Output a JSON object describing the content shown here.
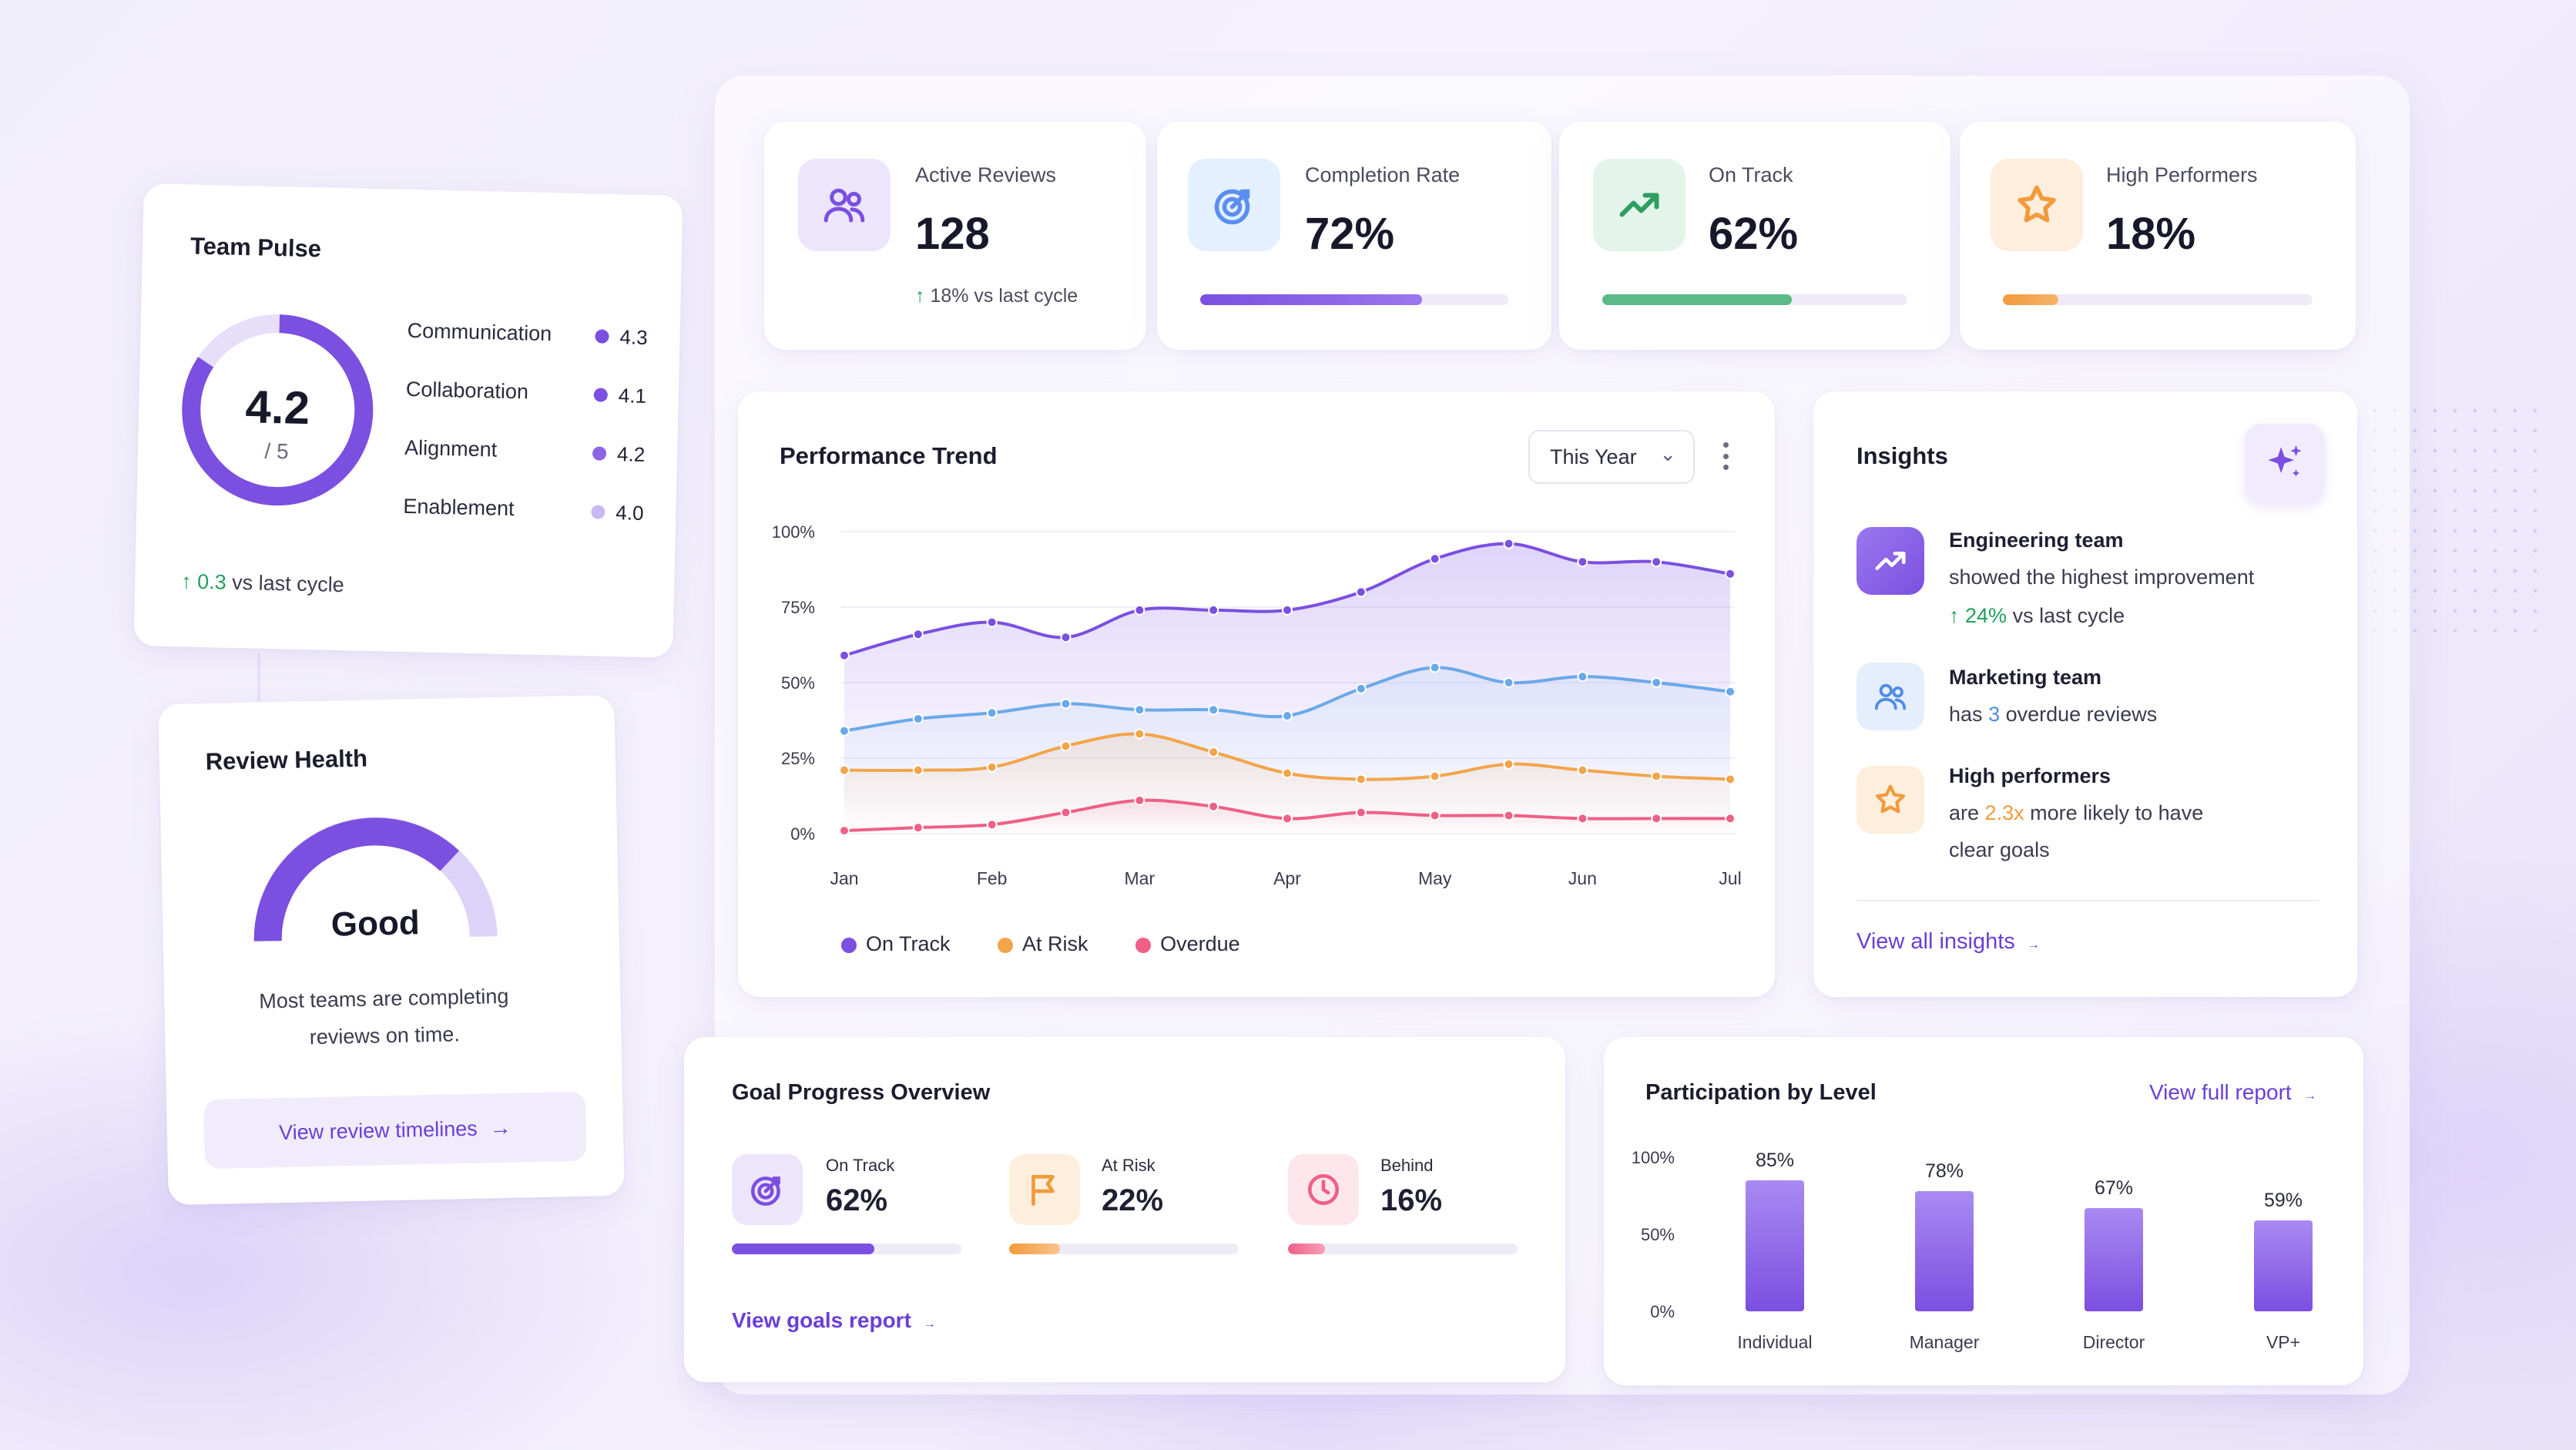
{
  "team_pulse": {
    "title": "Team Pulse",
    "score": "4.2",
    "scale": "/ 5",
    "items": [
      {
        "label": "Communication",
        "value": "4.3",
        "color": "#7b4fe0"
      },
      {
        "label": "Collaboration",
        "value": "4.1",
        "color": "#7b4fe0"
      },
      {
        "label": "Alignment",
        "value": "4.2",
        "color": "#8c64e6"
      },
      {
        "label": "Enablement",
        "value": "4.0",
        "color": "#c9b8f4"
      }
    ],
    "delta": "0.3",
    "delta_text": "vs last cycle"
  },
  "review_health": {
    "title": "Review Health",
    "status": "Good",
    "description": "Most teams are completing reviews on time.",
    "link": "View review timelines"
  },
  "kpis": [
    {
      "label": "Active Reviews",
      "value": "128",
      "sub": "18% vs last cycle",
      "icon": "users-icon",
      "accent": "#7b4fe0"
    },
    {
      "label": "Completion Rate",
      "value": "72%",
      "progress": 0.72,
      "icon": "target-icon",
      "accent": "#7b4fe0"
    },
    {
      "label": "On Track",
      "value": "62%",
      "progress": 0.62,
      "icon": "trend-up-icon",
      "accent": "#3aa86a"
    },
    {
      "label": "High Performers",
      "value": "18%",
      "progress": 0.18,
      "icon": "star-icon",
      "accent": "#f29a3a"
    }
  ],
  "performance": {
    "title": "Performance Trend",
    "period_select": "This Year",
    "legend": [
      "On Track",
      "At Risk",
      "Overdue"
    ]
  },
  "chart_data": [
    {
      "type": "line",
      "title": "Performance Trend",
      "x": [
        "Jan",
        "Jan½",
        "Feb",
        "Feb½",
        "Mar",
        "Mar½",
        "Apr",
        "Apr½",
        "May",
        "May½",
        "Jun",
        "Jun½",
        "Jul"
      ],
      "x_tick_labels": [
        "Jan",
        "Feb",
        "Mar",
        "Apr",
        "May",
        "Jun",
        "Jul"
      ],
      "y_tick_labels": [
        "100%",
        "75%",
        "50%",
        "25%",
        "0%"
      ],
      "ylim": [
        0,
        100
      ],
      "series": [
        {
          "name": "On Track",
          "color": "#7b4fe0",
          "values": [
            59,
            66,
            70,
            65,
            74,
            74,
            74,
            80,
            91,
            96,
            90,
            90,
            86
          ]
        },
        {
          "name": "At Risk",
          "color": "#f2a54a",
          "values": [
            21,
            21,
            22,
            29,
            33,
            27,
            20,
            18,
            19,
            23,
            21,
            19,
            18
          ]
        },
        {
          "name": "Overdue",
          "color": "#ef5f86",
          "values": [
            1,
            2,
            3,
            7,
            11,
            9,
            5,
            7,
            6,
            6,
            5,
            5,
            5
          ]
        },
        {
          "name": "",
          "color": "#6aa9e8",
          "values": [
            34,
            38,
            40,
            43,
            41,
            41,
            39,
            48,
            55,
            50,
            52,
            50,
            47
          ]
        }
      ],
      "grid": true
    },
    {
      "type": "bar",
      "title": "Participation by Level",
      "categories": [
        "Individual",
        "Manager",
        "Director",
        "VP+"
      ],
      "values": [
        85,
        78,
        67,
        59
      ],
      "value_labels": [
        "85%",
        "78%",
        "67%",
        "59%"
      ],
      "y_tick_labels": [
        "100%",
        "50%",
        "0%"
      ],
      "ylim": [
        0,
        100
      ]
    }
  ],
  "insights": {
    "title": "Insights",
    "items": [
      {
        "title": "Engineering team",
        "line1": "showed the highest improvement",
        "delta": "24%",
        "delta_text": "vs last cycle",
        "icon": "trend-up-icon"
      },
      {
        "title": "Marketing team",
        "pre": "has",
        "highlight": "3",
        "post": "overdue reviews",
        "icon": "users-icon"
      },
      {
        "title": "High performers",
        "pre": "are",
        "highlight": "2.3x",
        "post": "more likely to have",
        "line3": "clear goals",
        "icon": "star-icon"
      }
    ],
    "link": "View all insights"
  },
  "goals": {
    "title": "Goal Progress Overview",
    "items": [
      {
        "label": "On Track",
        "value": "62%",
        "progress": 0.62,
        "icon": "target-icon",
        "color": "#7b4fe0"
      },
      {
        "label": "At Risk",
        "value": "22%",
        "progress": 0.22,
        "icon": "flag-icon",
        "color": "#f29a3a"
      },
      {
        "label": "Behind",
        "value": "16%",
        "progress": 0.16,
        "icon": "clock-icon",
        "color": "#ef5f86"
      }
    ],
    "link": "View goals report"
  },
  "participation": {
    "title": "Participation by Level",
    "link": "View full report"
  }
}
